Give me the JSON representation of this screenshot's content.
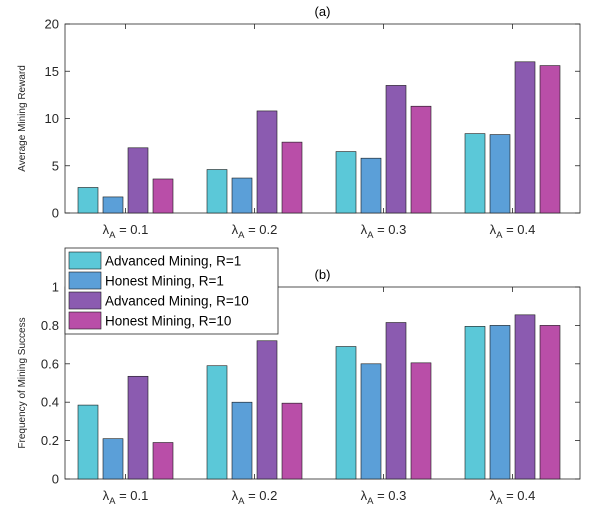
{
  "chart_data": [
    {
      "type": "bar",
      "title": "(a)",
      "xlabel": "",
      "ylabel": "Average Mining Reward",
      "ylim": [
        0,
        20
      ],
      "yticks": [
        0,
        5,
        10,
        15,
        20
      ],
      "grid": false,
      "categories": [
        {
          "main": "λ",
          "sub": "A",
          "rest": " = 0.1"
        },
        {
          "main": "λ",
          "sub": "A",
          "rest": " = 0.2"
        },
        {
          "main": "λ",
          "sub": "A",
          "rest": " = 0.3"
        },
        {
          "main": "λ",
          "sub": "A",
          "rest": " = 0.4"
        }
      ],
      "series": [
        {
          "name": "Advanced Mining, R=1",
          "color": "#5bc8d8",
          "values": [
            2.7,
            4.6,
            6.5,
            8.4
          ]
        },
        {
          "name": "Honest Mining, R=1",
          "color": "#5b9fd8",
          "values": [
            1.7,
            3.7,
            5.8,
            8.3
          ]
        },
        {
          "name": "Advanced Mining, R=10",
          "color": "#8b5bb0",
          "values": [
            6.9,
            10.8,
            13.5,
            16.0
          ]
        },
        {
          "name": "Honest Mining, R=10",
          "color": "#b94ea8",
          "values": [
            3.6,
            7.5,
            11.3,
            15.6
          ]
        }
      ]
    },
    {
      "type": "bar",
      "title": "(b)",
      "xlabel": "",
      "ylabel": "Frequency of Mining Success",
      "ylim": [
        0,
        1
      ],
      "yticks": [
        0,
        0.2,
        0.4,
        0.6,
        0.8,
        1
      ],
      "grid": false,
      "legend_position": "top-left",
      "categories": [
        {
          "main": "λ",
          "sub": "A",
          "rest": " = 0.1"
        },
        {
          "main": "λ",
          "sub": "A",
          "rest": " = 0.2"
        },
        {
          "main": "λ",
          "sub": "A",
          "rest": " = 0.3"
        },
        {
          "main": "λ",
          "sub": "A",
          "rest": " = 0.4"
        }
      ],
      "series": [
        {
          "name": "Advanced Mining, R=1",
          "color": "#5bc8d8",
          "values": [
            0.385,
            0.59,
            0.69,
            0.795
          ]
        },
        {
          "name": "Honest Mining, R=1",
          "color": "#5b9fd8",
          "values": [
            0.21,
            0.4,
            0.6,
            0.8
          ]
        },
        {
          "name": "Advanced Mining, R=10",
          "color": "#8b5bb0",
          "values": [
            0.535,
            0.72,
            0.815,
            0.855
          ]
        },
        {
          "name": "Honest Mining, R=10",
          "color": "#b94ea8",
          "values": [
            0.19,
            0.395,
            0.605,
            0.8
          ]
        }
      ]
    }
  ]
}
